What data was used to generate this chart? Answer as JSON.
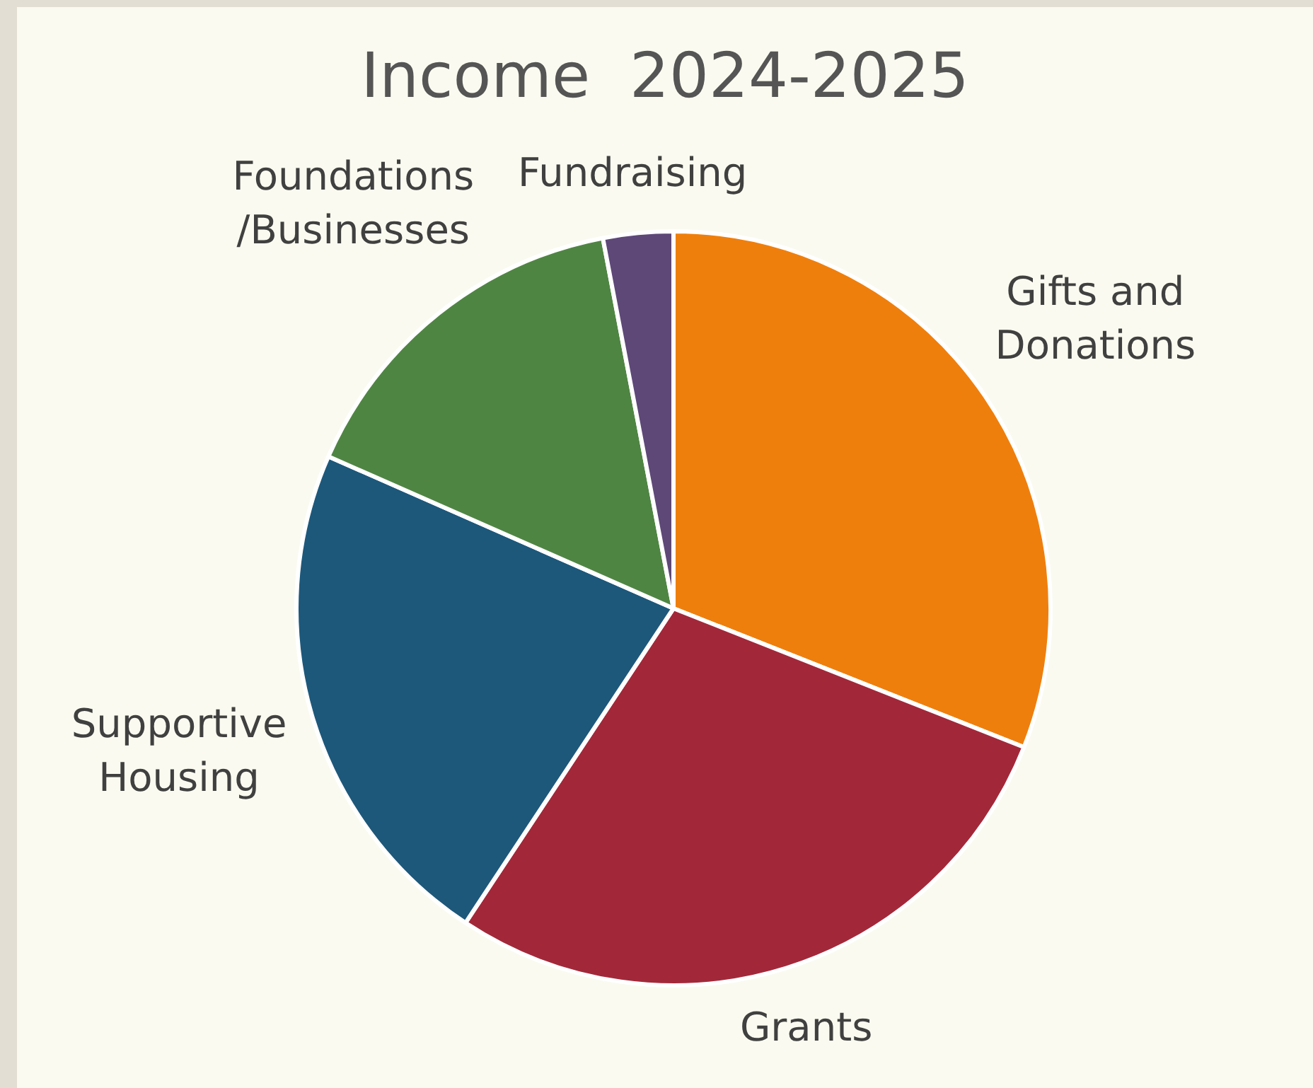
{
  "chart_data": {
    "type": "pie",
    "title": "Income  2024-2025",
    "categories": [
      "Gifts and Donations",
      "Grants",
      "Supportive Housing",
      "Foundations/Businesses",
      "Fundraising"
    ],
    "values": [
      31.0,
      28.3,
      22.3,
      15.4,
      3.0
    ],
    "colors": [
      "#ef7f0c",
      "#a22839",
      "#1d587b",
      "#4f8543",
      "#5e4878"
    ],
    "legend": false
  }
}
